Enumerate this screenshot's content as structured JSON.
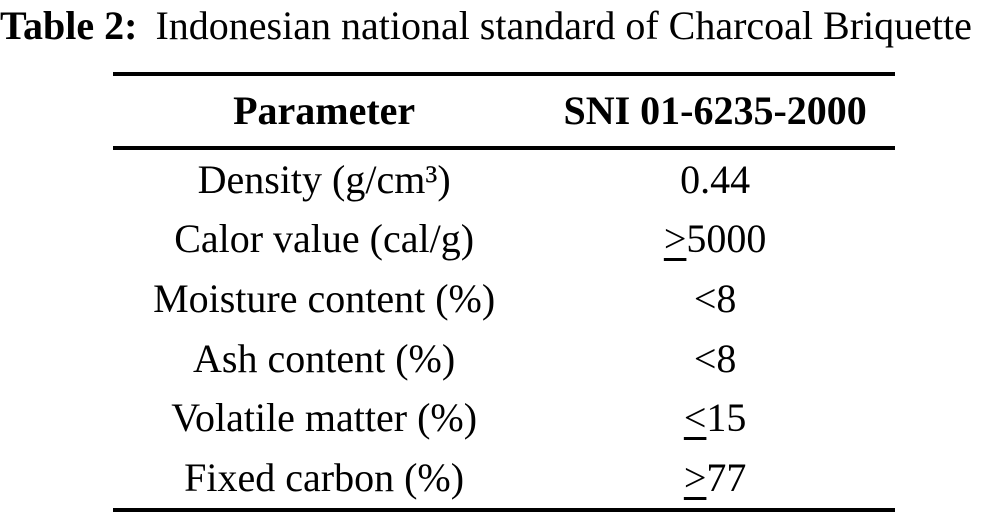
{
  "caption": {
    "label": "Table 2:",
    "text": "Indonesian national standard of Charcoal Briquette"
  },
  "table": {
    "headers": [
      "Parameter",
      "SNI 01-6235-2000"
    ],
    "rows": [
      {
        "parameter": "Density (g/cm³)",
        "value": "0.44"
      },
      {
        "parameter": "Calor value (cal/g)",
        "value": "≥5000"
      },
      {
        "parameter": "Moisture content (%)",
        "value": "<8"
      },
      {
        "parameter": "Ash content (%)",
        "value": "<8"
      },
      {
        "parameter": "Volatile matter (%)",
        "value": "≤15"
      },
      {
        "parameter": "Fixed carbon (%)",
        "value": "≥77"
      }
    ]
  },
  "colors": {
    "text": "#000000",
    "background": "#ffffff",
    "rule": "#000000"
  }
}
